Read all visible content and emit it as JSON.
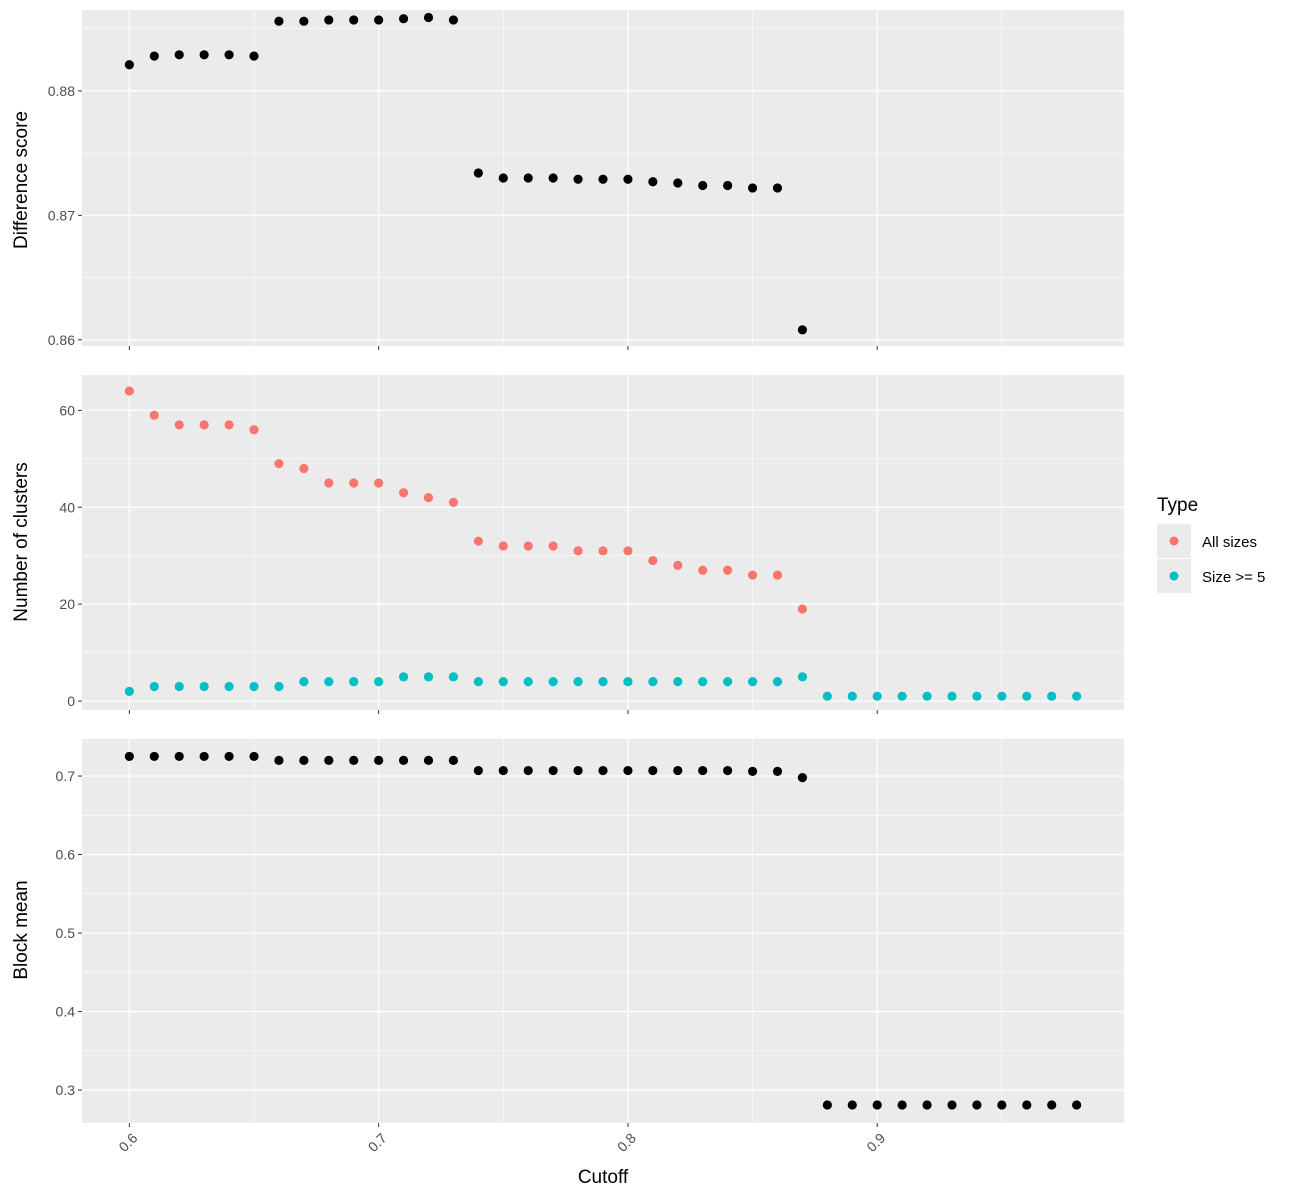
{
  "chart_data": [
    {
      "type": "scatter",
      "panel": "top",
      "ylabel": "Difference score",
      "ylim": [
        0.8595,
        0.8865
      ],
      "yticks": [
        0.86,
        0.87,
        0.88
      ],
      "ytick_labels": [
        "0.86",
        "0.87",
        "0.88"
      ],
      "color": "#000000",
      "points": [
        {
          "x": 0.6,
          "y": 0.8821
        },
        {
          "x": 0.61,
          "y": 0.8828
        },
        {
          "x": 0.62,
          "y": 0.8829
        },
        {
          "x": 0.63,
          "y": 0.8829
        },
        {
          "x": 0.64,
          "y": 0.8829
        },
        {
          "x": 0.65,
          "y": 0.8828
        },
        {
          "x": 0.66,
          "y": 0.8856
        },
        {
          "x": 0.67,
          "y": 0.8856
        },
        {
          "x": 0.68,
          "y": 0.8857
        },
        {
          "x": 0.69,
          "y": 0.8857
        },
        {
          "x": 0.7,
          "y": 0.8857
        },
        {
          "x": 0.71,
          "y": 0.8858
        },
        {
          "x": 0.72,
          "y": 0.8859
        },
        {
          "x": 0.73,
          "y": 0.8857
        },
        {
          "x": 0.74,
          "y": 0.8734
        },
        {
          "x": 0.75,
          "y": 0.873
        },
        {
          "x": 0.76,
          "y": 0.873
        },
        {
          "x": 0.77,
          "y": 0.873
        },
        {
          "x": 0.78,
          "y": 0.8729
        },
        {
          "x": 0.79,
          "y": 0.8729
        },
        {
          "x": 0.8,
          "y": 0.8729
        },
        {
          "x": 0.81,
          "y": 0.8727
        },
        {
          "x": 0.82,
          "y": 0.8726
        },
        {
          "x": 0.83,
          "y": 0.8724
        },
        {
          "x": 0.84,
          "y": 0.8724
        },
        {
          "x": 0.85,
          "y": 0.8722
        },
        {
          "x": 0.86,
          "y": 0.8722
        },
        {
          "x": 0.87,
          "y": 0.8608
        }
      ]
    },
    {
      "type": "scatter",
      "panel": "middle",
      "ylabel": "Number of clusters",
      "ylim": [
        -1.85,
        67.3
      ],
      "yticks": [
        0,
        20,
        40,
        60
      ],
      "ytick_labels": [
        "0",
        "20",
        "40",
        "60"
      ],
      "legend": {
        "title": "Type",
        "position": "right"
      },
      "series": [
        {
          "name": "All sizes",
          "color": "#F8766D",
          "points": [
            {
              "x": 0.6,
              "y": 64
            },
            {
              "x": 0.61,
              "y": 59
            },
            {
              "x": 0.62,
              "y": 57
            },
            {
              "x": 0.63,
              "y": 57
            },
            {
              "x": 0.64,
              "y": 57
            },
            {
              "x": 0.65,
              "y": 56
            },
            {
              "x": 0.66,
              "y": 49
            },
            {
              "x": 0.67,
              "y": 48
            },
            {
              "x": 0.68,
              "y": 45
            },
            {
              "x": 0.69,
              "y": 45
            },
            {
              "x": 0.7,
              "y": 45
            },
            {
              "x": 0.71,
              "y": 43
            },
            {
              "x": 0.72,
              "y": 42
            },
            {
              "x": 0.73,
              "y": 41
            },
            {
              "x": 0.74,
              "y": 33
            },
            {
              "x": 0.75,
              "y": 32
            },
            {
              "x": 0.76,
              "y": 32
            },
            {
              "x": 0.77,
              "y": 32
            },
            {
              "x": 0.78,
              "y": 31
            },
            {
              "x": 0.79,
              "y": 31
            },
            {
              "x": 0.8,
              "y": 31
            },
            {
              "x": 0.81,
              "y": 29
            },
            {
              "x": 0.82,
              "y": 28
            },
            {
              "x": 0.83,
              "y": 27
            },
            {
              "x": 0.84,
              "y": 27
            },
            {
              "x": 0.85,
              "y": 26
            },
            {
              "x": 0.86,
              "y": 26
            },
            {
              "x": 0.87,
              "y": 19
            }
          ]
        },
        {
          "name": "Size >= 5",
          "color": "#00BFC4",
          "points": [
            {
              "x": 0.6,
              "y": 2
            },
            {
              "x": 0.61,
              "y": 3
            },
            {
              "x": 0.62,
              "y": 3
            },
            {
              "x": 0.63,
              "y": 3
            },
            {
              "x": 0.64,
              "y": 3
            },
            {
              "x": 0.65,
              "y": 3
            },
            {
              "x": 0.66,
              "y": 3
            },
            {
              "x": 0.67,
              "y": 4
            },
            {
              "x": 0.68,
              "y": 4
            },
            {
              "x": 0.69,
              "y": 4
            },
            {
              "x": 0.7,
              "y": 4
            },
            {
              "x": 0.71,
              "y": 5
            },
            {
              "x": 0.72,
              "y": 5
            },
            {
              "x": 0.73,
              "y": 5
            },
            {
              "x": 0.74,
              "y": 4
            },
            {
              "x": 0.75,
              "y": 4
            },
            {
              "x": 0.76,
              "y": 4
            },
            {
              "x": 0.77,
              "y": 4
            },
            {
              "x": 0.78,
              "y": 4
            },
            {
              "x": 0.79,
              "y": 4
            },
            {
              "x": 0.8,
              "y": 4
            },
            {
              "x": 0.81,
              "y": 4
            },
            {
              "x": 0.82,
              "y": 4
            },
            {
              "x": 0.83,
              "y": 4
            },
            {
              "x": 0.84,
              "y": 4
            },
            {
              "x": 0.85,
              "y": 4
            },
            {
              "x": 0.86,
              "y": 4
            },
            {
              "x": 0.87,
              "y": 5
            },
            {
              "x": 0.88,
              "y": 1
            },
            {
              "x": 0.89,
              "y": 1
            },
            {
              "x": 0.9,
              "y": 1
            },
            {
              "x": 0.91,
              "y": 1
            },
            {
              "x": 0.92,
              "y": 1
            },
            {
              "x": 0.93,
              "y": 1
            },
            {
              "x": 0.94,
              "y": 1
            },
            {
              "x": 0.95,
              "y": 1
            },
            {
              "x": 0.96,
              "y": 1
            },
            {
              "x": 0.97,
              "y": 1
            },
            {
              "x": 0.98,
              "y": 1
            }
          ]
        }
      ]
    },
    {
      "type": "scatter",
      "panel": "bottom",
      "ylabel": "Block mean",
      "xlabel": "Cutoff",
      "ylim": [
        0.258,
        0.7472
      ],
      "yticks": [
        0.3,
        0.4,
        0.5,
        0.6,
        0.7
      ],
      "ytick_labels": [
        "0.3",
        "0.4",
        "0.5",
        "0.6",
        "0.7"
      ],
      "color": "#000000",
      "points": [
        {
          "x": 0.6,
          "y": 0.725
        },
        {
          "x": 0.61,
          "y": 0.725
        },
        {
          "x": 0.62,
          "y": 0.725
        },
        {
          "x": 0.63,
          "y": 0.725
        },
        {
          "x": 0.64,
          "y": 0.725
        },
        {
          "x": 0.65,
          "y": 0.725
        },
        {
          "x": 0.66,
          "y": 0.72
        },
        {
          "x": 0.67,
          "y": 0.72
        },
        {
          "x": 0.68,
          "y": 0.72
        },
        {
          "x": 0.69,
          "y": 0.72
        },
        {
          "x": 0.7,
          "y": 0.72
        },
        {
          "x": 0.71,
          "y": 0.72
        },
        {
          "x": 0.72,
          "y": 0.72
        },
        {
          "x": 0.73,
          "y": 0.72
        },
        {
          "x": 0.74,
          "y": 0.707
        },
        {
          "x": 0.75,
          "y": 0.707
        },
        {
          "x": 0.76,
          "y": 0.707
        },
        {
          "x": 0.77,
          "y": 0.707
        },
        {
          "x": 0.78,
          "y": 0.707
        },
        {
          "x": 0.79,
          "y": 0.707
        },
        {
          "x": 0.8,
          "y": 0.707
        },
        {
          "x": 0.81,
          "y": 0.707
        },
        {
          "x": 0.82,
          "y": 0.707
        },
        {
          "x": 0.83,
          "y": 0.707
        },
        {
          "x": 0.84,
          "y": 0.707
        },
        {
          "x": 0.85,
          "y": 0.706
        },
        {
          "x": 0.86,
          "y": 0.706
        },
        {
          "x": 0.87,
          "y": 0.698
        },
        {
          "x": 0.88,
          "y": 0.281
        },
        {
          "x": 0.89,
          "y": 0.281
        },
        {
          "x": 0.9,
          "y": 0.281
        },
        {
          "x": 0.91,
          "y": 0.281
        },
        {
          "x": 0.92,
          "y": 0.281
        },
        {
          "x": 0.93,
          "y": 0.281
        },
        {
          "x": 0.94,
          "y": 0.281
        },
        {
          "x": 0.95,
          "y": 0.281
        },
        {
          "x": 0.96,
          "y": 0.281
        },
        {
          "x": 0.97,
          "y": 0.281
        },
        {
          "x": 0.98,
          "y": 0.281
        }
      ]
    }
  ],
  "x_axis": {
    "title": "Cutoff",
    "xlim": [
      0.581,
      0.999
    ],
    "ticks": [
      0.6,
      0.7,
      0.8,
      0.9
    ],
    "tick_labels": [
      "0.6",
      "0.7",
      "0.8",
      "0.9"
    ]
  },
  "legend": {
    "title": "Type",
    "items": [
      {
        "label": "All sizes",
        "color": "#F8766D"
      },
      {
        "label": "Size >= 5",
        "color": "#00BFC4"
      }
    ]
  },
  "theme": {
    "panel_bg": "#EBEBEB",
    "grid_color": "#FFFFFF",
    "tick_color": "#333333"
  }
}
